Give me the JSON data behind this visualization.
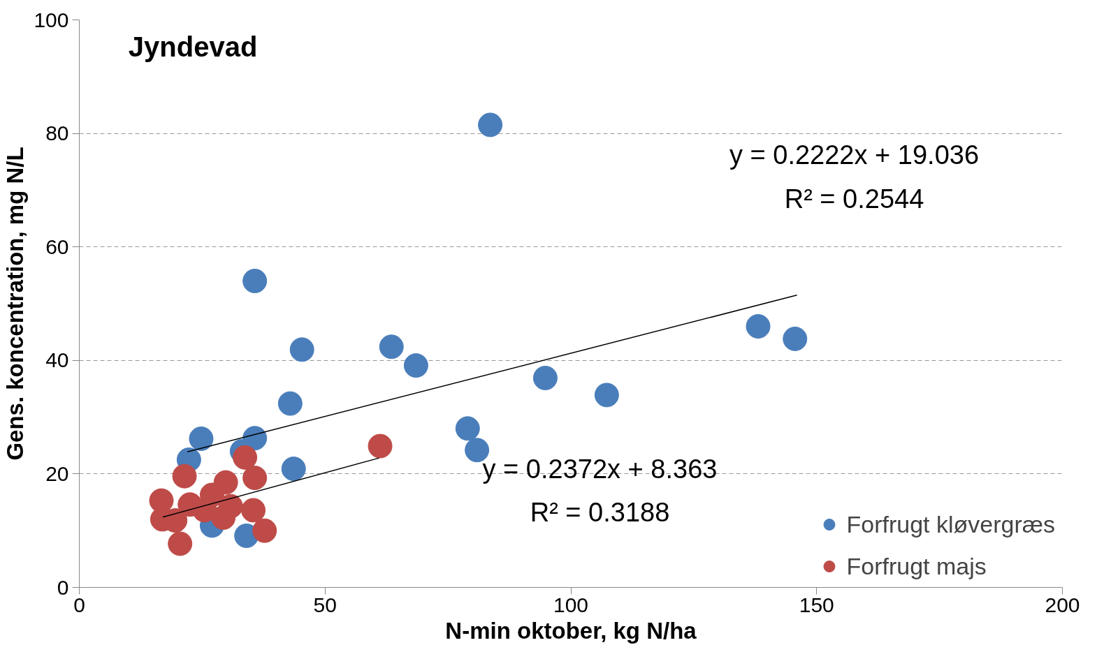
{
  "chart_data": {
    "type": "scatter",
    "title": "Jyndevad",
    "xlabel": "N-min oktober, kg N/ha",
    "ylabel": "Gens. koncentration, mg N/L",
    "xlim": [
      0,
      200
    ],
    "xticks": [
      0,
      50,
      100,
      150,
      200
    ],
    "ylim": [
      0,
      100
    ],
    "yticks": [
      0,
      20,
      40,
      60,
      80,
      100
    ],
    "grid": "y",
    "legend": "bottom right",
    "series": [
      {
        "name": "Forfrugt kløvergræs",
        "color": "#4a7ebb",
        "marker": "circle",
        "x": [
          83.6,
          35.7,
          45.3,
          63.5,
          68.5,
          42.9,
          94.8,
          107.3,
          138.1,
          145.6,
          79,
          80.9,
          43.6,
          24.8,
          35.7,
          22.3,
          33.1,
          27,
          34
        ],
        "values": [
          81.5,
          54,
          41.9,
          42.4,
          39.1,
          32.4,
          36.9,
          33.9,
          46,
          43.8,
          28,
          24.2,
          20.9,
          26.2,
          26.3,
          22.5,
          24,
          10.9,
          9.1
        ]
      },
      {
        "name": "Forfrugt majs",
        "color": "#be4b48",
        "marker": "circle",
        "x": [
          61.2,
          33.7,
          35.7,
          21.4,
          16.7,
          16.9,
          20.5,
          29.8,
          27,
          22.5,
          30.8,
          29.3,
          35.4,
          37.7,
          19.5,
          25.5
        ],
        "values": [
          24.9,
          22.9,
          19.3,
          19.6,
          15.3,
          12,
          7.7,
          18.5,
          16.3,
          14.6,
          14.3,
          12.3,
          13.6,
          10,
          11.8,
          13.6
        ]
      },
      {
        "type": "line",
        "color": "#000000",
        "marker": "none",
        "x": [
          22,
          146
        ],
        "values": [
          23.9,
          51.5
        ]
      },
      {
        "type": "line",
        "color": "#000000",
        "marker": "none",
        "x": [
          17,
          61
        ],
        "values": [
          12.4,
          22.8
        ]
      }
    ],
    "annotations": [
      "y = 0.2222x + 19.036",
      "R² = 0.2544",
      "y = 0.2372x + 8.363",
      "R² = 0.3188"
    ]
  }
}
